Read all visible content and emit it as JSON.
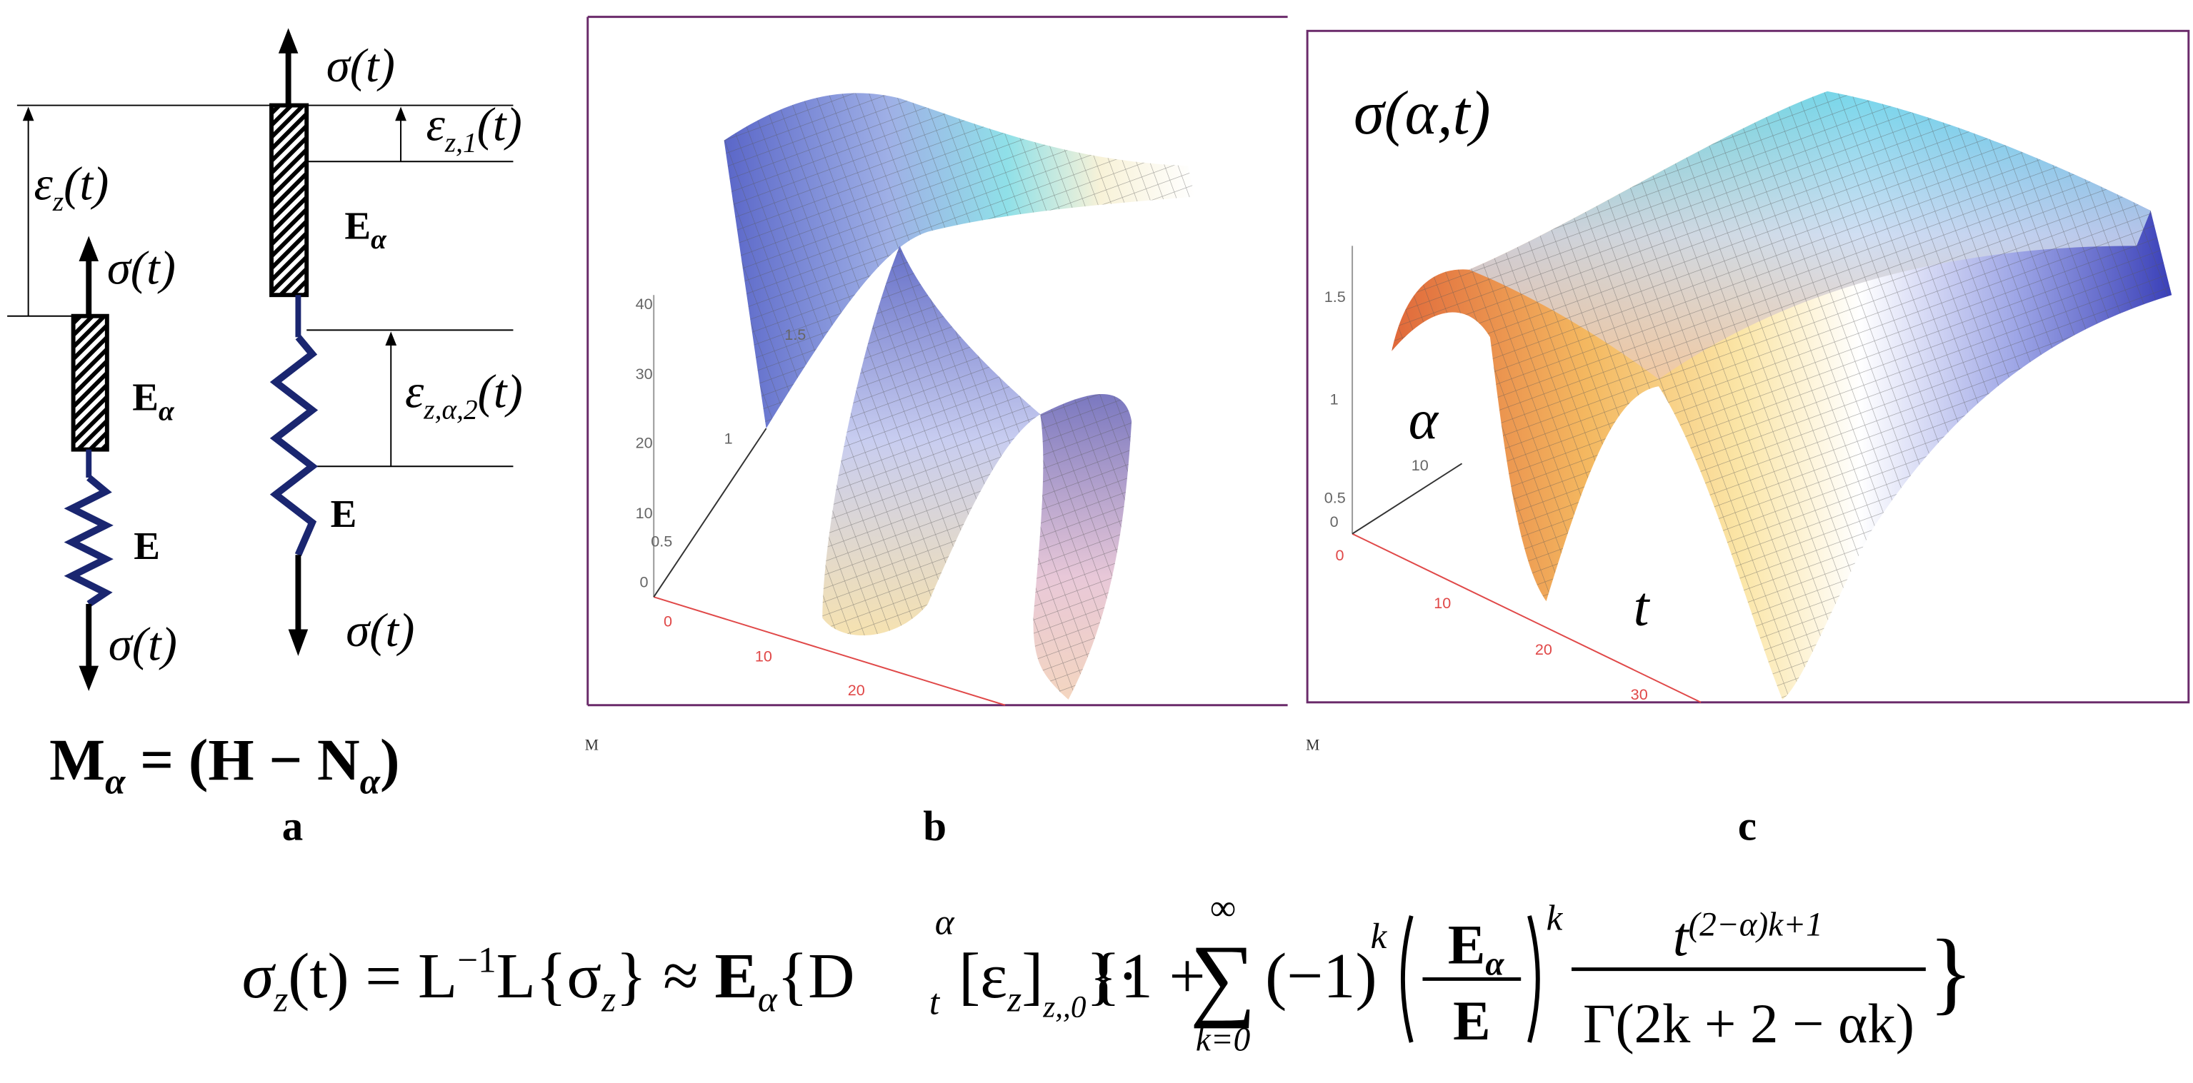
{
  "panel_a": {
    "left_model": {
      "top_load": "σ(t)",
      "element_1": {
        "symbol": "E",
        "sub": "α"
      },
      "element_2": "E",
      "bottom_load": "σ(t)"
    },
    "right_model": {
      "top_load": "σ(t)",
      "element_1": {
        "symbol": "E",
        "sub": "α"
      },
      "element_2": "E",
      "bottom_load": "σ(t)"
    },
    "strain_total": {
      "symbol": "ε",
      "sub": "z",
      "arg": "(t)"
    },
    "strain_1": {
      "symbol": "ε",
      "sub": "z,1",
      "arg": "(t)"
    },
    "strain_2": {
      "symbol": "ε",
      "sub": "z,α,2",
      "arg": "(t)"
    },
    "relation": {
      "lhs": "M",
      "lhs_sub": "α",
      "middle": " = (H − N",
      "middle_sub": "α",
      "close": ")"
    },
    "caption": "a"
  },
  "panel_b": {
    "z_ticks": [
      "40",
      "30",
      "20",
      "10",
      "0"
    ],
    "inner_ticks": [
      "0.5",
      "1",
      "1.5"
    ],
    "x_ticks": [
      "0",
      "10",
      "20"
    ],
    "corner_label": "M",
    "caption": "b"
  },
  "panel_c": {
    "title": "σ(α,t)",
    "z_ticks": [
      "1.5",
      "1",
      "0.5",
      "0"
    ],
    "alpha_tick": "10",
    "x_ticks": [
      "0",
      "10",
      "20",
      "30"
    ],
    "alpha_label": "α",
    "t_label": "t",
    "corner_label": "M",
    "caption": "c"
  },
  "formula": {
    "lhs": "σ",
    "lhs_sub": "z",
    "lhs_arg": "(t) = L",
    "inv": "−1",
    "transform": "L{σ",
    "transform_sub": "z",
    "approx": "} ≈ ",
    "modulus": "E",
    "modulus_sub": "α",
    "deriv": "{D",
    "deriv_sub": "t",
    "deriv_sup": "α",
    "strain": "[ε",
    "strain_sub": "z",
    "strain_close": "]",
    "strain_lim": "z,,0",
    "dot": "}·",
    "open": "{1 + ",
    "sum": "∑",
    "sum_top": "∞",
    "sum_bottom": "k=0",
    "sign": "(−1)",
    "sign_pow": "k",
    "ratio_num": "E",
    "ratio_num_sub": "α",
    "ratio_den": "E",
    "ratio_pow": "k",
    "power_base": "t",
    "power_exp": "(2−α)k+1",
    "gamma": "Γ(2k + 2 − αk)",
    "close": "}"
  }
}
